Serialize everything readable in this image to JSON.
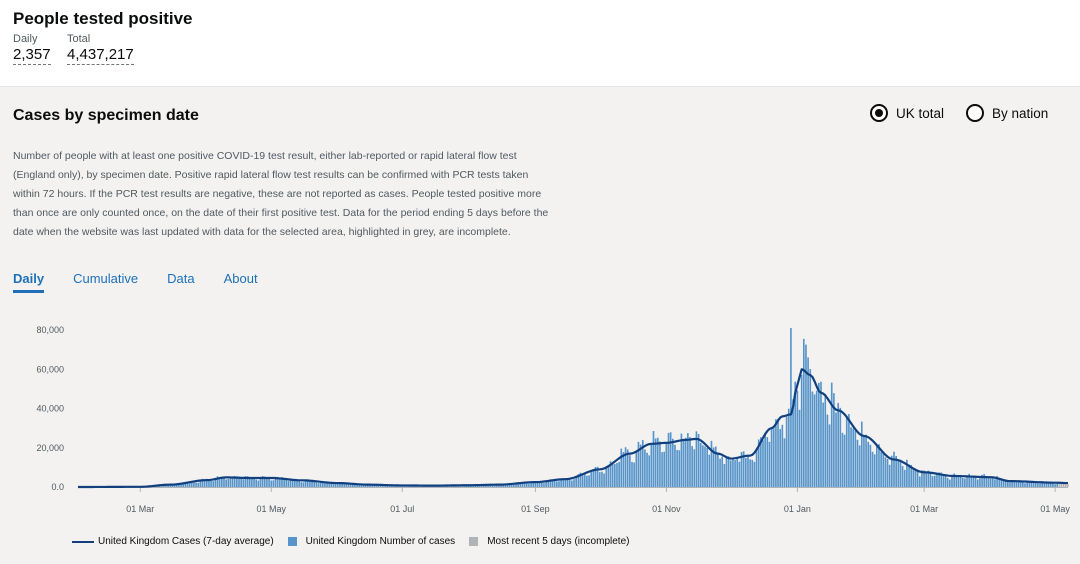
{
  "headline": {
    "title": "People tested positive",
    "daily_label": "Daily",
    "daily_value": "2,357",
    "total_label": "Total",
    "total_value": "4,437,217"
  },
  "card": {
    "title": "Cases by specimen date",
    "radio_uk": "UK total",
    "radio_nation": "By nation",
    "selected": "UK total",
    "description": "Number of people with at least one positive COVID-19 test result, either lab-reported or rapid lateral flow test (England only), by specimen date. Positive rapid lateral flow test results can be confirmed with PCR tests taken within 72 hours. If the PCR test results are negative, these are not reported as cases. People tested positive more than once are only counted once, on the date of their first positive test. Data for the period ending 5 days before the date when the website was last updated with data for the selected area, highlighted in grey, are incomplete.",
    "tabs": [
      "Daily",
      "Cumulative",
      "Data",
      "About"
    ],
    "active_tab": "Daily"
  },
  "colors": {
    "bar": "#5694ca",
    "line": "#12407f",
    "incomplete": "#b1b4b6",
    "link": "#1d70b8"
  },
  "chart_data": {
    "type": "bar",
    "x_start": "2020-02-01",
    "x_end": "2021-05-07",
    "xticks": [
      "01 Mar",
      "01 May",
      "01 Jul",
      "01 Sep",
      "01 Nov",
      "01 Jan",
      "01 Mar",
      "01 May"
    ],
    "xtick_dates": [
      "2020-03-01",
      "2020-05-01",
      "2020-07-01",
      "2020-09-01",
      "2020-11-01",
      "2021-01-01",
      "2021-03-01",
      "2021-05-01"
    ],
    "yticks": [
      "0.0",
      "20,000",
      "40,000",
      "60,000",
      "80,000"
    ],
    "ylim": [
      0,
      80000
    ],
    "grid": false,
    "legend_position": "bottom",
    "series": [
      {
        "name": "United Kingdom Cases (7-day average)",
        "type": "line"
      },
      {
        "name": "United Kingdom Number of cases",
        "type": "bar"
      },
      {
        "name": "Most recent 5 days (incomplete)",
        "type": "bar"
      }
    ],
    "avg_anchors": [
      [
        "2020-02-01",
        0
      ],
      [
        "2020-03-01",
        100
      ],
      [
        "2020-03-15",
        1200
      ],
      [
        "2020-04-01",
        3500
      ],
      [
        "2020-04-10",
        4900
      ],
      [
        "2020-04-20",
        4600
      ],
      [
        "2020-05-01",
        4600
      ],
      [
        "2020-05-15",
        3400
      ],
      [
        "2020-06-01",
        2000
      ],
      [
        "2020-06-15",
        1200
      ],
      [
        "2020-07-01",
        800
      ],
      [
        "2020-07-15",
        700
      ],
      [
        "2020-08-01",
        900
      ],
      [
        "2020-08-15",
        1200
      ],
      [
        "2020-09-01",
        2500
      ],
      [
        "2020-09-15",
        4000
      ],
      [
        "2020-10-01",
        9000
      ],
      [
        "2020-10-15",
        17000
      ],
      [
        "2020-10-25",
        22000
      ],
      [
        "2020-11-01",
        22500
      ],
      [
        "2020-11-10",
        24000
      ],
      [
        "2020-11-15",
        24500
      ],
      [
        "2020-11-25",
        17000
      ],
      [
        "2020-12-01",
        14500
      ],
      [
        "2020-12-10",
        16000
      ],
      [
        "2020-12-20",
        30000
      ],
      [
        "2020-12-25",
        36000
      ],
      [
        "2020-12-29",
        37000
      ],
      [
        "2021-01-01",
        52000
      ],
      [
        "2021-01-03",
        60000
      ],
      [
        "2021-01-07",
        57000
      ],
      [
        "2021-01-12",
        48000
      ],
      [
        "2021-01-20",
        39000
      ],
      [
        "2021-02-01",
        26000
      ],
      [
        "2021-02-15",
        14000
      ],
      [
        "2021-03-01",
        7500
      ],
      [
        "2021-03-15",
        5600
      ],
      [
        "2021-04-01",
        5000
      ],
      [
        "2021-04-10",
        3000
      ],
      [
        "2021-05-01",
        2200
      ],
      [
        "2021-05-07",
        2000
      ]
    ],
    "peak": {
      "date": "2020-12-29",
      "value": 81000
    }
  }
}
